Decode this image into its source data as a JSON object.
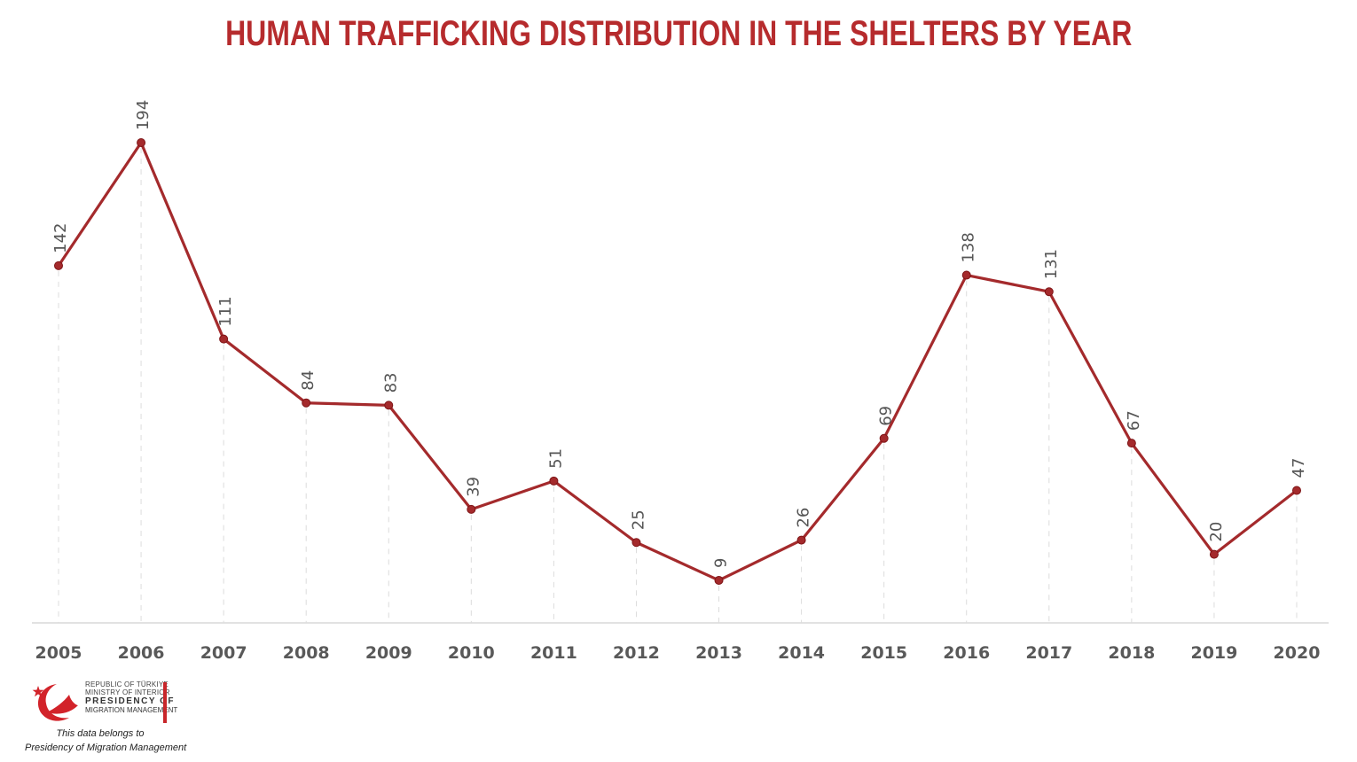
{
  "chart_data": {
    "type": "line",
    "title": "HUMAN TRAFFICKING DISTRIBUTION IN THE SHELTERS BY YEAR",
    "xlabel": "",
    "ylabel": "",
    "categories": [
      "2005",
      "2006",
      "2007",
      "2008",
      "2009",
      "2010",
      "2011",
      "2012",
      "2013",
      "2014",
      "2015",
      "2016",
      "2017",
      "2018",
      "2019",
      "2020"
    ],
    "values": [
      142,
      194,
      111,
      84,
      83,
      39,
      51,
      25,
      9,
      26,
      69,
      138,
      131,
      67,
      20,
      47
    ],
    "ylim": [
      0,
      200
    ],
    "grid": "vertical dashed drop lines",
    "data_labels": true,
    "line_color": "#a42a2c",
    "title_color": "#b62b2d"
  },
  "footer": {
    "logo_line1": "REPUBLIC OF TÜRKIYE",
    "logo_line2": "MINISTRY OF INTERIOR",
    "logo_line3": "PRESIDENCY OF",
    "logo_line4": "MIGRATION MANAGEMENT",
    "note_line1": "This data belongs to",
    "note_line2": "Presidency of Migration Management",
    "logo_icon": "crescent-star-icon"
  }
}
